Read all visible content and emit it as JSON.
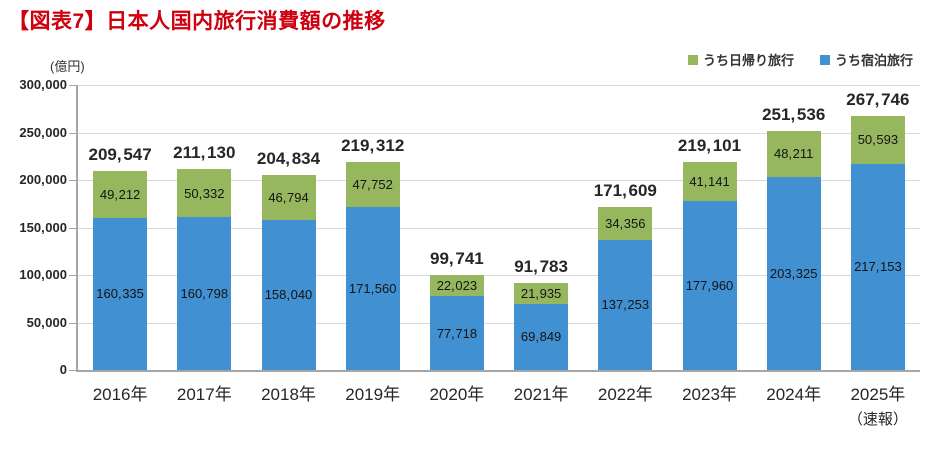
{
  "title": "【図表7】日本人国内旅行消費額の推移",
  "chart_data": {
    "type": "bar",
    "stacked": true,
    "title": "【図表7】日本人国内旅行消費額の推移",
    "unit": "(億円)",
    "categories": [
      "2016年",
      "2017年",
      "2018年",
      "2019年",
      "2020年",
      "2021年",
      "2022年",
      "2023年",
      "2024年",
      "2025年"
    ],
    "category_notes": [
      "",
      "",
      "",
      "",
      "",
      "",
      "",
      "",
      "",
      "（速報）"
    ],
    "series": [
      {
        "name": "うち宿泊旅行",
        "color": "#4190d2",
        "values": [
          160335,
          160798,
          158040,
          171560,
          77718,
          69849,
          137253,
          177960,
          203325,
          217153
        ]
      },
      {
        "name": "うち日帰り旅行",
        "color": "#97b75f",
        "values": [
          49212,
          50332,
          46794,
          47752,
          22023,
          21935,
          34356,
          41141,
          48211,
          50593
        ]
      }
    ],
    "totals": [
      209547,
      211130,
      204834,
      219312,
      99741,
      91783,
      171609,
      219101,
      251536,
      267746
    ],
    "ylim": [
      0,
      300000
    ],
    "ytick_step": 50000,
    "ytick_labels": [
      "0",
      "50,000",
      "100,000",
      "150,000",
      "200,000",
      "250,000",
      "300,000"
    ],
    "grid": true,
    "legend_position": "top-right",
    "legend_order": [
      "うち日帰り旅行",
      "うち宿泊旅行"
    ]
  },
  "colors": {
    "title_red": "#ce000e",
    "axis": "#a6a6a6",
    "gridline": "#d9d9d9",
    "label_text": "#262626"
  }
}
